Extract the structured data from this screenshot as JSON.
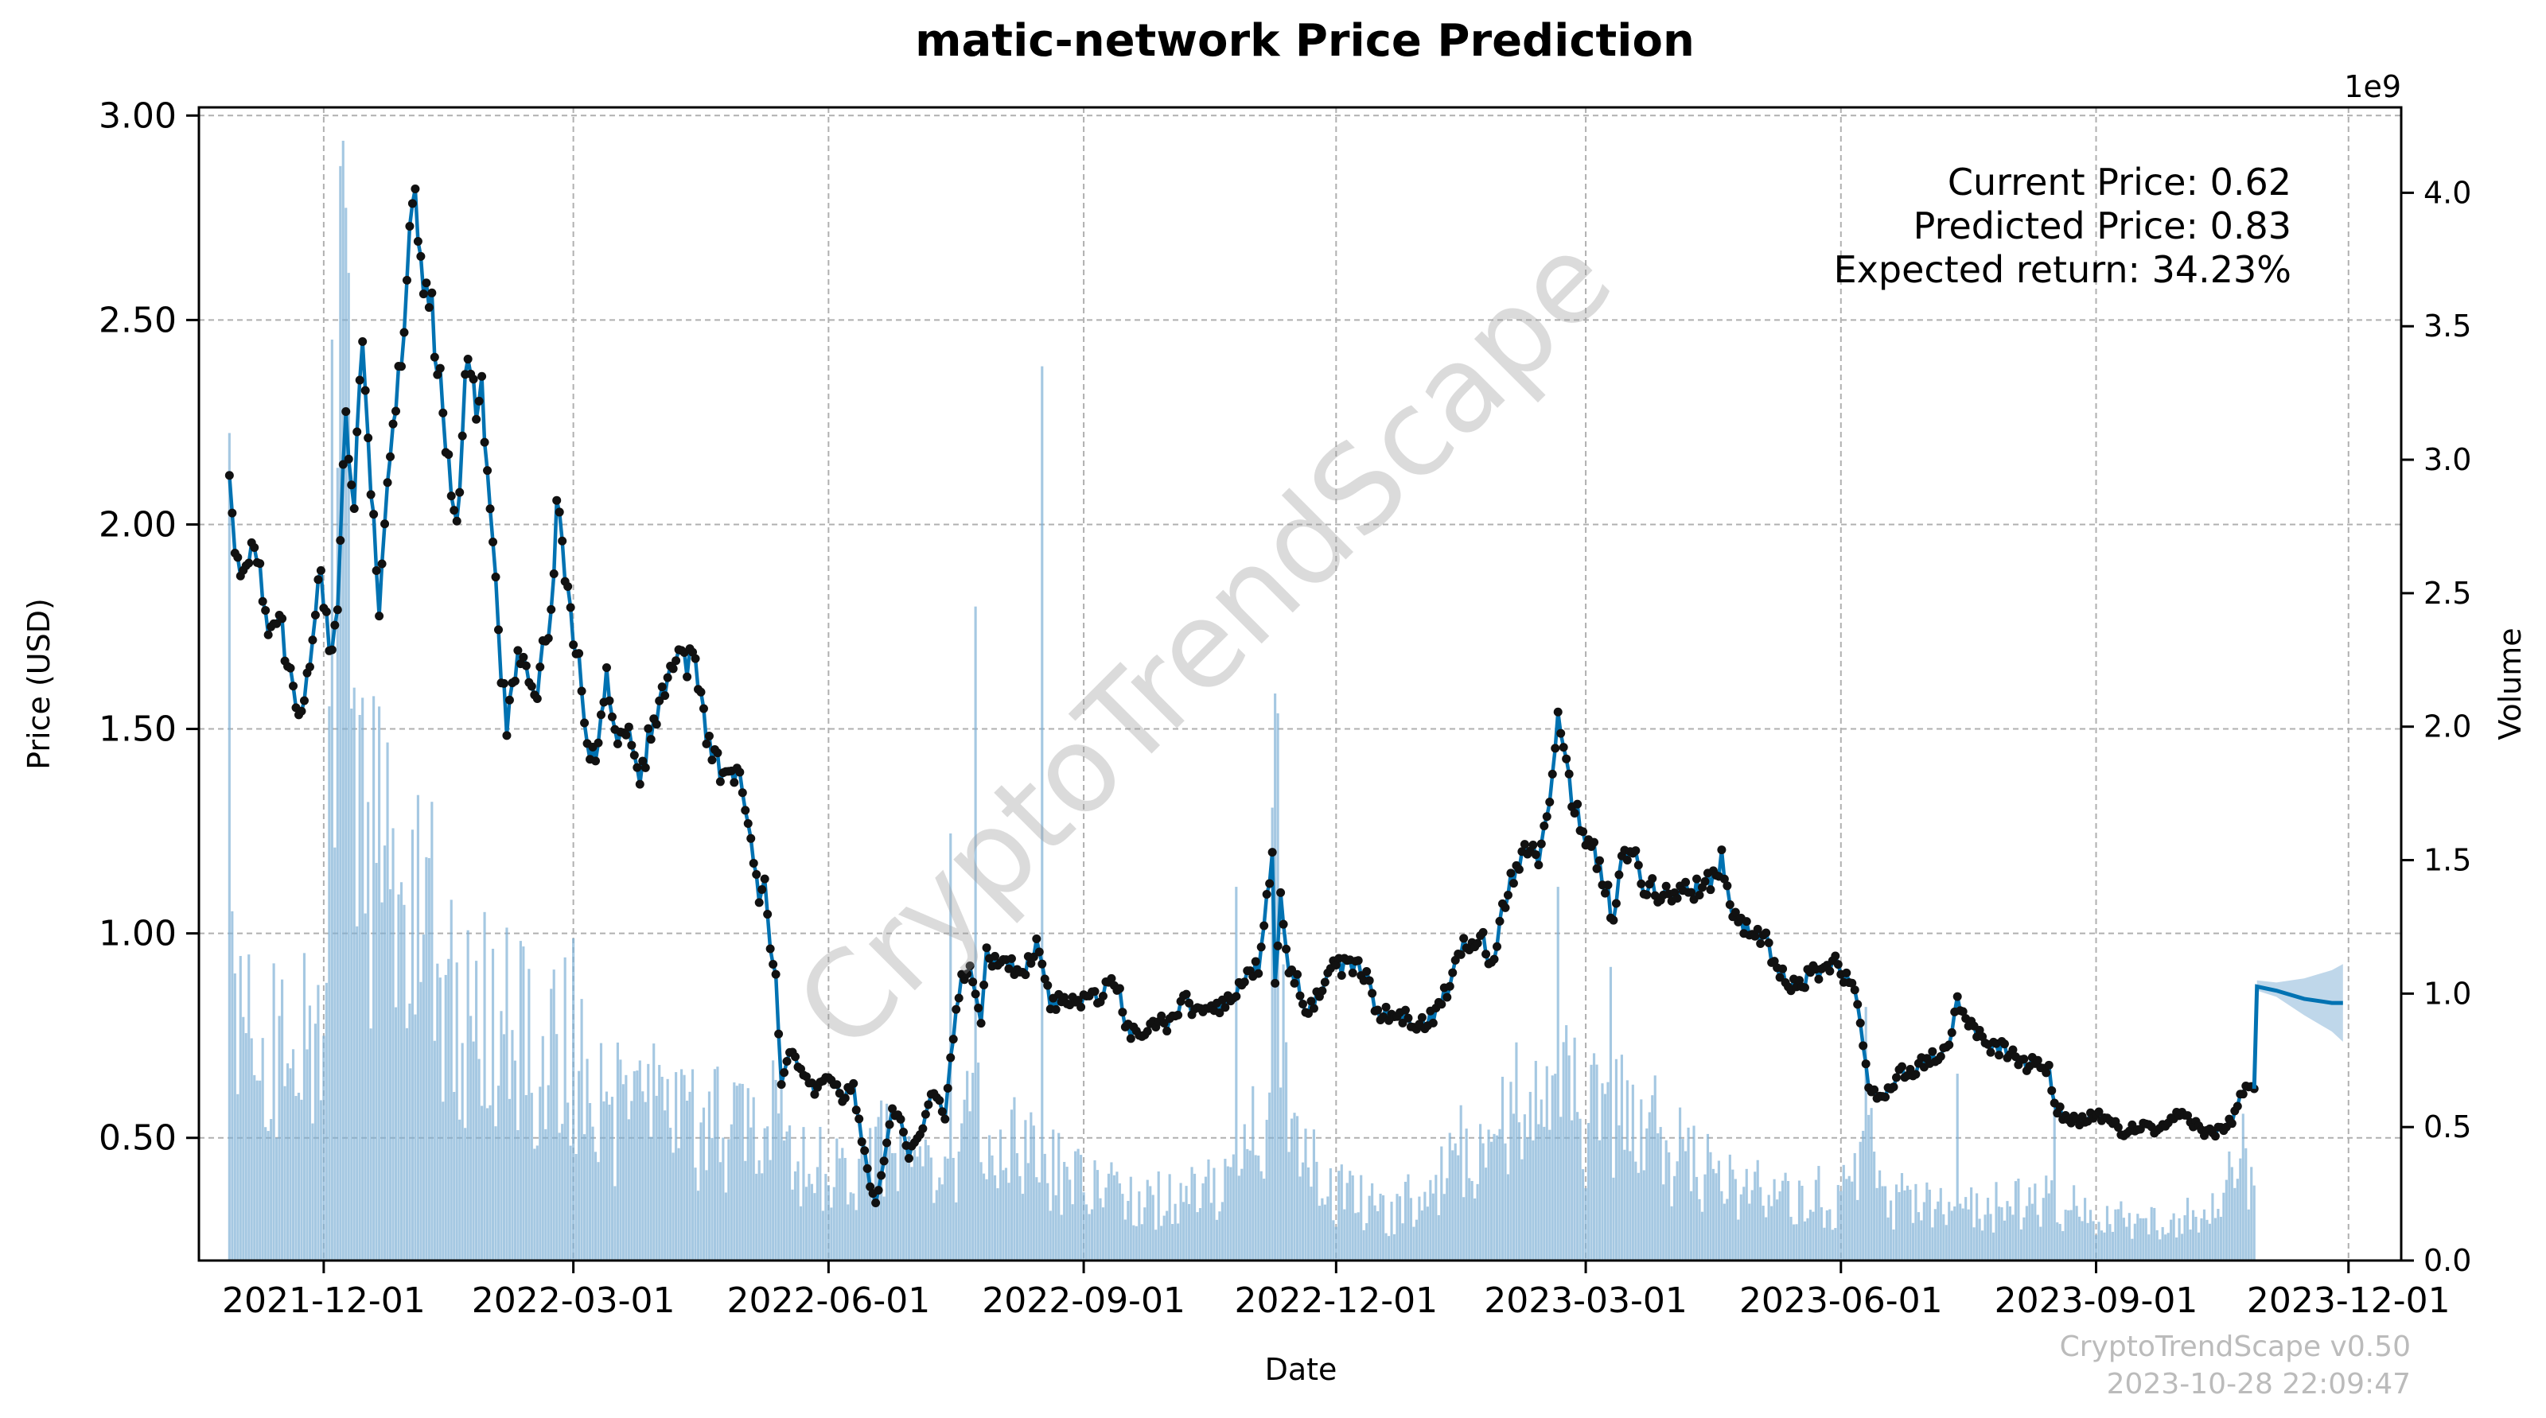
{
  "colors": {
    "price_line": "#0072b2",
    "markers": "#111111",
    "volume": "#7fb0d6",
    "band": "#7fb0d6",
    "grid": "#b0b0b0"
  },
  "chart_data": {
    "type": "line",
    "title": "matic-network Price Prediction",
    "xlabel": "Date",
    "ylabel": "Price (USD)",
    "y2label": "Volume",
    "y2_multiplier": "1e9",
    "grid": true,
    "ylim": [
      0.2,
      3.02
    ],
    "y2lim": [
      0,
      4.32
    ],
    "xlim": [
      "2021-10-17",
      "2023-12-20"
    ],
    "yticks": [
      "0.50",
      "1.00",
      "1.50",
      "2.00",
      "2.50",
      "3.00"
    ],
    "y2ticks": [
      "0.0",
      "0.5",
      "1.0",
      "1.5",
      "2.0",
      "2.5",
      "3.0",
      "3.5",
      "4.0"
    ],
    "xticks": [
      "2021-12-01",
      "2022-03-01",
      "2022-06-01",
      "2022-09-01",
      "2022-12-01",
      "2023-03-01",
      "2023-06-01",
      "2023-09-01",
      "2023-12-01"
    ],
    "price_anchors": [
      [
        "2021-10-28",
        2.12
      ],
      [
        "2021-10-31",
        1.88
      ],
      [
        "2021-11-04",
        1.93
      ],
      [
        "2021-11-08",
        1.9
      ],
      [
        "2021-11-12",
        1.72
      ],
      [
        "2021-11-16",
        1.75
      ],
      [
        "2021-11-20",
        1.58
      ],
      [
        "2021-11-22",
        1.5
      ],
      [
        "2021-11-26",
        1.64
      ],
      [
        "2021-11-30",
        1.92
      ],
      [
        "2021-12-03",
        1.68
      ],
      [
        "2021-12-06",
        1.8
      ],
      [
        "2021-12-09",
        2.28
      ],
      [
        "2021-12-12",
        2.05
      ],
      [
        "2021-12-15",
        2.42
      ],
      [
        "2021-12-18",
        2.12
      ],
      [
        "2021-12-21",
        1.82
      ],
      [
        "2021-12-24",
        2.1
      ],
      [
        "2021-12-27",
        2.3
      ],
      [
        "2021-12-30",
        2.52
      ],
      [
        "2022-01-01",
        2.68
      ],
      [
        "2022-01-03",
        2.89
      ],
      [
        "2022-01-05",
        2.62
      ],
      [
        "2022-01-08",
        2.55
      ],
      [
        "2022-01-11",
        2.42
      ],
      [
        "2022-01-14",
        2.2
      ],
      [
        "2022-01-18",
        2.0
      ],
      [
        "2022-01-21",
        2.38
      ],
      [
        "2022-01-24",
        2.3
      ],
      [
        "2022-01-27",
        2.32
      ],
      [
        "2022-01-30",
        2.05
      ],
      [
        "2022-02-02",
        1.72
      ],
      [
        "2022-02-05",
        1.52
      ],
      [
        "2022-02-09",
        1.68
      ],
      [
        "2022-02-12",
        1.62
      ],
      [
        "2022-02-15",
        1.56
      ],
      [
        "2022-02-18",
        1.7
      ],
      [
        "2022-02-21",
        1.76
      ],
      [
        "2022-02-23",
        2.05
      ],
      [
        "2022-02-26",
        1.88
      ],
      [
        "2022-03-01",
        1.7
      ],
      [
        "2022-03-04",
        1.62
      ],
      [
        "2022-03-07",
        1.42
      ],
      [
        "2022-03-10",
        1.46
      ],
      [
        "2022-03-13",
        1.62
      ],
      [
        "2022-03-16",
        1.52
      ],
      [
        "2022-03-19",
        1.46
      ],
      [
        "2022-03-22",
        1.48
      ],
      [
        "2022-03-25",
        1.38
      ],
      [
        "2022-03-29",
        1.5
      ],
      [
        "2022-04-02",
        1.58
      ],
      [
        "2022-04-06",
        1.66
      ],
      [
        "2022-04-09",
        1.68
      ],
      [
        "2022-04-12",
        1.66
      ],
      [
        "2022-04-15",
        1.62
      ],
      [
        "2022-04-18",
        1.5
      ],
      [
        "2022-04-21",
        1.42
      ],
      [
        "2022-04-25",
        1.38
      ],
      [
        "2022-04-28",
        1.4
      ],
      [
        "2022-05-01",
        1.36
      ],
      [
        "2022-05-04",
        1.25
      ],
      [
        "2022-05-07",
        1.1
      ],
      [
        "2022-05-09",
        1.15
      ],
      [
        "2022-05-11",
        0.98
      ],
      [
        "2022-05-13",
        0.9
      ],
      [
        "2022-05-15",
        0.62
      ],
      [
        "2022-05-18",
        0.7
      ],
      [
        "2022-05-21",
        0.68
      ],
      [
        "2022-05-24",
        0.64
      ],
      [
        "2022-05-27",
        0.62
      ],
      [
        "2022-06-01",
        0.65
      ],
      [
        "2022-06-06",
        0.6
      ],
      [
        "2022-06-10",
        0.62
      ],
      [
        "2022-06-13",
        0.5
      ],
      [
        "2022-06-16",
        0.38
      ],
      [
        "2022-06-18",
        0.34
      ],
      [
        "2022-06-21",
        0.44
      ],
      [
        "2022-06-24",
        0.56
      ],
      [
        "2022-06-27",
        0.55
      ],
      [
        "2022-06-30",
        0.46
      ],
      [
        "2022-07-04",
        0.5
      ],
      [
        "2022-07-08",
        0.6
      ],
      [
        "2022-07-11",
        0.6
      ],
      [
        "2022-07-13",
        0.55
      ],
      [
        "2022-07-16",
        0.76
      ],
      [
        "2022-07-19",
        0.88
      ],
      [
        "2022-07-22",
        0.92
      ],
      [
        "2022-07-26",
        0.78
      ],
      [
        "2022-07-28",
        0.95
      ],
      [
        "2022-08-01",
        0.92
      ],
      [
        "2022-08-06",
        0.92
      ],
      [
        "2022-08-10",
        0.9
      ],
      [
        "2022-08-13",
        0.95
      ],
      [
        "2022-08-15",
        0.97
      ],
      [
        "2022-08-17",
        0.92
      ],
      [
        "2022-08-20",
        0.82
      ],
      [
        "2022-08-25",
        0.84
      ],
      [
        "2022-08-29",
        0.82
      ],
      [
        "2022-09-03",
        0.86
      ],
      [
        "2022-09-07",
        0.84
      ],
      [
        "2022-09-10",
        0.9
      ],
      [
        "2022-09-13",
        0.88
      ],
      [
        "2022-09-17",
        0.76
      ],
      [
        "2022-09-22",
        0.76
      ],
      [
        "2022-09-26",
        0.78
      ],
      [
        "2022-10-01",
        0.78
      ],
      [
        "2022-10-07",
        0.84
      ],
      [
        "2022-10-12",
        0.8
      ],
      [
        "2022-10-17",
        0.82
      ],
      [
        "2022-10-22",
        0.82
      ],
      [
        "2022-10-26",
        0.86
      ],
      [
        "2022-10-30",
        0.9
      ],
      [
        "2022-11-03",
        0.92
      ],
      [
        "2022-11-06",
        1.1
      ],
      [
        "2022-11-08",
        1.2
      ],
      [
        "2022-11-09",
        0.88
      ],
      [
        "2022-11-11",
        1.1
      ],
      [
        "2022-11-14",
        0.9
      ],
      [
        "2022-11-17",
        0.88
      ],
      [
        "2022-11-21",
        0.8
      ],
      [
        "2022-11-25",
        0.86
      ],
      [
        "2022-11-29",
        0.92
      ],
      [
        "2022-12-03",
        0.92
      ],
      [
        "2022-12-08",
        0.92
      ],
      [
        "2022-12-12",
        0.9
      ],
      [
        "2022-12-16",
        0.8
      ],
      [
        "2022-12-20",
        0.8
      ],
      [
        "2022-12-25",
        0.8
      ],
      [
        "2022-12-30",
        0.77
      ],
      [
        "2023-01-05",
        0.8
      ],
      [
        "2023-01-10",
        0.86
      ],
      [
        "2023-01-14",
        0.96
      ],
      [
        "2023-01-18",
        0.98
      ],
      [
        "2023-01-22",
        1.0
      ],
      [
        "2023-01-26",
        0.92
      ],
      [
        "2023-01-29",
        1.02
      ],
      [
        "2023-02-01",
        1.12
      ],
      [
        "2023-02-05",
        1.18
      ],
      [
        "2023-02-09",
        1.22
      ],
      [
        "2023-02-12",
        1.18
      ],
      [
        "2023-02-15",
        1.3
      ],
      [
        "2023-02-18",
        1.45
      ],
      [
        "2023-02-19",
        1.52
      ],
      [
        "2023-02-21",
        1.46
      ],
      [
        "2023-02-24",
        1.34
      ],
      [
        "2023-02-27",
        1.28
      ],
      [
        "2023-03-02",
        1.22
      ],
      [
        "2023-03-05",
        1.18
      ],
      [
        "2023-03-09",
        1.1
      ],
      [
        "2023-03-11",
        1.02
      ],
      [
        "2023-03-14",
        1.18
      ],
      [
        "2023-03-18",
        1.2
      ],
      [
        "2023-03-22",
        1.12
      ],
      [
        "2023-03-27",
        1.1
      ],
      [
        "2023-04-01",
        1.1
      ],
      [
        "2023-04-07",
        1.1
      ],
      [
        "2023-04-12",
        1.12
      ],
      [
        "2023-04-16",
        1.14
      ],
      [
        "2023-04-19",
        1.18
      ],
      [
        "2023-04-22",
        1.08
      ],
      [
        "2023-04-26",
        1.02
      ],
      [
        "2023-04-30",
        1.0
      ],
      [
        "2023-05-05",
        0.98
      ],
      [
        "2023-05-10",
        0.9
      ],
      [
        "2023-05-14",
        0.87
      ],
      [
        "2023-05-18",
        0.88
      ],
      [
        "2023-05-22",
        0.9
      ],
      [
        "2023-05-26",
        0.92
      ],
      [
        "2023-05-29",
        0.93
      ],
      [
        "2023-06-02",
        0.9
      ],
      [
        "2023-06-06",
        0.86
      ],
      [
        "2023-06-09",
        0.72
      ],
      [
        "2023-06-11",
        0.62
      ],
      [
        "2023-06-14",
        0.6
      ],
      [
        "2023-06-18",
        0.62
      ],
      [
        "2023-06-22",
        0.66
      ],
      [
        "2023-06-26",
        0.66
      ],
      [
        "2023-06-30",
        0.68
      ],
      [
        "2023-07-05",
        0.7
      ],
      [
        "2023-07-10",
        0.72
      ],
      [
        "2023-07-13",
        0.84
      ],
      [
        "2023-07-16",
        0.78
      ],
      [
        "2023-07-20",
        0.76
      ],
      [
        "2023-07-25",
        0.72
      ],
      [
        "2023-07-30",
        0.72
      ],
      [
        "2023-08-05",
        0.68
      ],
      [
        "2023-08-10",
        0.68
      ],
      [
        "2023-08-15",
        0.67
      ],
      [
        "2023-08-17",
        0.58
      ],
      [
        "2023-08-22",
        0.54
      ],
      [
        "2023-08-27",
        0.54
      ],
      [
        "2023-09-01",
        0.56
      ],
      [
        "2023-09-06",
        0.54
      ],
      [
        "2023-09-11",
        0.51
      ],
      [
        "2023-09-16",
        0.53
      ],
      [
        "2023-09-21",
        0.52
      ],
      [
        "2023-09-26",
        0.52
      ],
      [
        "2023-10-01",
        0.56
      ],
      [
        "2023-10-06",
        0.54
      ],
      [
        "2023-10-11",
        0.51
      ],
      [
        "2023-10-16",
        0.52
      ],
      [
        "2023-10-20",
        0.54
      ],
      [
        "2023-10-24",
        0.62
      ],
      [
        "2023-10-28",
        0.62
      ]
    ],
    "forecast": {
      "series": [
        [
          "2023-10-28",
          0.62
        ],
        [
          "2023-10-29",
          0.87
        ],
        [
          "2023-11-05",
          0.86
        ],
        [
          "2023-11-15",
          0.84
        ],
        [
          "2023-11-25",
          0.83
        ],
        [
          "2023-11-29",
          0.83
        ]
      ],
      "band_upper": [
        [
          "2023-10-29",
          0.885
        ],
        [
          "2023-11-05",
          0.88
        ],
        [
          "2023-11-15",
          0.89
        ],
        [
          "2023-11-25",
          0.91
        ],
        [
          "2023-11-29",
          0.925
        ]
      ],
      "band_lower": [
        [
          "2023-10-29",
          0.86
        ],
        [
          "2023-11-05",
          0.845
        ],
        [
          "2023-11-15",
          0.8
        ],
        [
          "2023-11-25",
          0.76
        ],
        [
          "2023-11-29",
          0.735
        ]
      ]
    },
    "volume_envelope_1e9": [
      [
        "2021-10-28",
        1.6
      ],
      [
        "2021-11-01",
        1.2
      ],
      [
        "2021-11-08",
        0.95
      ],
      [
        "2021-11-15",
        0.8
      ],
      [
        "2021-11-22",
        0.8
      ],
      [
        "2021-12-01",
        1.1
      ],
      [
        "2021-12-05",
        2.2
      ],
      [
        "2021-12-08",
        3.6
      ],
      [
        "2021-12-12",
        2.4
      ],
      [
        "2021-12-18",
        1.6
      ],
      [
        "2021-12-28",
        1.6
      ],
      [
        "2022-01-05",
        1.4
      ],
      [
        "2022-01-18",
        1.1
      ],
      [
        "2022-02-01",
        0.95
      ],
      [
        "2022-02-15",
        0.9
      ],
      [
        "2022-03-01",
        0.9
      ],
      [
        "2022-03-15",
        0.6
      ],
      [
        "2022-04-01",
        0.65
      ],
      [
        "2022-04-20",
        0.55
      ],
      [
        "2022-05-10",
        0.6
      ],
      [
        "2022-05-20",
        0.45
      ],
      [
        "2022-06-10",
        0.35
      ],
      [
        "2022-06-20",
        0.45
      ],
      [
        "2022-07-10",
        0.35
      ],
      [
        "2022-07-25",
        0.6
      ],
      [
        "2022-08-10",
        0.45
      ],
      [
        "2022-09-01",
        0.3
      ],
      [
        "2022-10-01",
        0.25
      ],
      [
        "2022-10-25",
        0.3
      ],
      [
        "2022-11-05",
        0.6
      ],
      [
        "2022-11-09",
        1.9
      ],
      [
        "2022-11-13",
        0.7
      ],
      [
        "2022-11-25",
        0.3
      ],
      [
        "2022-12-20",
        0.2
      ],
      [
        "2023-01-10",
        0.35
      ],
      [
        "2023-01-25",
        0.6
      ],
      [
        "2023-02-10",
        0.75
      ],
      [
        "2023-02-20",
        0.85
      ],
      [
        "2023-03-01",
        0.55
      ],
      [
        "2023-03-12",
        0.7
      ],
      [
        "2023-04-01",
        0.45
      ],
      [
        "2023-05-01",
        0.3
      ],
      [
        "2023-06-01",
        0.25
      ],
      [
        "2023-06-10",
        0.5
      ],
      [
        "2023-06-20",
        0.25
      ],
      [
        "2023-07-15",
        0.2
      ],
      [
        "2023-08-17",
        0.25
      ],
      [
        "2023-09-15",
        0.15
      ],
      [
        "2023-10-15",
        0.2
      ],
      [
        "2023-10-24",
        0.45
      ],
      [
        "2023-10-28",
        0.3
      ]
    ],
    "volume_spikes_1e9": [
      [
        "2021-10-28",
        3.1
      ],
      [
        "2021-12-04",
        3.45
      ],
      [
        "2021-12-07",
        4.1
      ],
      [
        "2021-12-10",
        3.7
      ],
      [
        "2022-08-17",
        3.35
      ],
      [
        "2022-07-24",
        2.45
      ],
      [
        "2022-11-10",
        2.05
      ],
      [
        "2022-07-15",
        1.6
      ],
      [
        "2022-10-26",
        1.4
      ],
      [
        "2023-02-19",
        1.4
      ],
      [
        "2023-03-10",
        1.1
      ],
      [
        "2023-06-10",
        0.95
      ],
      [
        "2023-07-13",
        0.7
      ],
      [
        "2023-08-17",
        0.6
      ],
      [
        "2023-10-24",
        0.55
      ]
    ],
    "annotations": {
      "current_price": "Current Price: 0.62",
      "predicted_price": "Predicted Price: 0.83",
      "expected_return": "Expected return: 34.23%"
    }
  },
  "watermark": "CryptoTrendScape",
  "footer": {
    "version": "CryptoTrendScape v0.50",
    "timestamp": "2023-10-28 22:09:47"
  }
}
